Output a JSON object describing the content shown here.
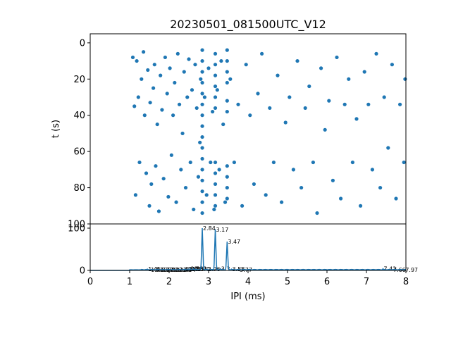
{
  "colors": {
    "marker": "#1f77b4",
    "axis": "#000000",
    "background": "#ffffff"
  },
  "chart_data": [
    {
      "type": "scatter",
      "title": "20230501_081500UTC_V12",
      "xlabel": "",
      "ylabel": "t (s)",
      "xlim": [
        0,
        8
      ],
      "ylim": [
        100,
        -5
      ],
      "y_inverted": true,
      "yticks": [
        0,
        20,
        40,
        60,
        80,
        100
      ],
      "x_shared_with_ipi_axis": true,
      "dense_columns_ms": [
        2.84,
        3.17,
        3.47
      ],
      "time_bands_s": [
        [
          5,
          52
        ],
        [
          62,
          97
        ]
      ],
      "points": [
        [
          1.08,
          8
        ],
        [
          1.12,
          35
        ],
        [
          1.15,
          84
        ],
        [
          1.18,
          10
        ],
        [
          1.22,
          30
        ],
        [
          1.25,
          66
        ],
        [
          1.3,
          20
        ],
        [
          1.35,
          5
        ],
        [
          1.38,
          40
        ],
        [
          1.42,
          72
        ],
        [
          1.46,
          15
        ],
        [
          1.5,
          90
        ],
        [
          1.52,
          33
        ],
        [
          1.55,
          78
        ],
        [
          1.6,
          25
        ],
        [
          1.63,
          12
        ],
        [
          1.66,
          68
        ],
        [
          1.7,
          45
        ],
        [
          1.74,
          93
        ],
        [
          1.78,
          18
        ],
        [
          1.82,
          37
        ],
        [
          1.86,
          75
        ],
        [
          1.9,
          8
        ],
        [
          1.95,
          28
        ],
        [
          1.98,
          85
        ],
        [
          2.02,
          14
        ],
        [
          2.06,
          62
        ],
        [
          2.1,
          40
        ],
        [
          2.14,
          22
        ],
        [
          2.18,
          88
        ],
        [
          2.22,
          6
        ],
        [
          2.26,
          34
        ],
        [
          2.3,
          70
        ],
        [
          2.34,
          50
        ],
        [
          2.38,
          16
        ],
        [
          2.42,
          80
        ],
        [
          2.46,
          30
        ],
        [
          2.5,
          9
        ],
        [
          2.54,
          66
        ],
        [
          2.58,
          26
        ],
        [
          2.62,
          92
        ],
        [
          2.66,
          12
        ],
        [
          2.7,
          36
        ],
        [
          2.74,
          74
        ],
        [
          2.78,
          55
        ],
        [
          2.8,
          20
        ],
        [
          2.84,
          4
        ],
        [
          2.84,
          10
        ],
        [
          2.84,
          16
        ],
        [
          2.84,
          22
        ],
        [
          2.84,
          28
        ],
        [
          2.84,
          34
        ],
        [
          2.84,
          40
        ],
        [
          2.84,
          46
        ],
        [
          2.84,
          52
        ],
        [
          2.84,
          58
        ],
        [
          2.84,
          64
        ],
        [
          2.84,
          70
        ],
        [
          2.84,
          76
        ],
        [
          2.84,
          82
        ],
        [
          2.84,
          88
        ],
        [
          2.84,
          94
        ],
        [
          2.9,
          30
        ],
        [
          2.95,
          84
        ],
        [
          3.0,
          14
        ],
        [
          3.05,
          66
        ],
        [
          3.1,
          38
        ],
        [
          3.14,
          92
        ],
        [
          3.17,
          6
        ],
        [
          3.17,
          12
        ],
        [
          3.17,
          18
        ],
        [
          3.17,
          24
        ],
        [
          3.17,
          30
        ],
        [
          3.17,
          36
        ],
        [
          3.17,
          66
        ],
        [
          3.17,
          72
        ],
        [
          3.17,
          78
        ],
        [
          3.17,
          84
        ],
        [
          3.17,
          90
        ],
        [
          3.22,
          26
        ],
        [
          3.27,
          70
        ],
        [
          3.32,
          10
        ],
        [
          3.37,
          45
        ],
        [
          3.42,
          88
        ],
        [
          3.47,
          4
        ],
        [
          3.47,
          10
        ],
        [
          3.47,
          16
        ],
        [
          3.47,
          22
        ],
        [
          3.47,
          32
        ],
        [
          3.47,
          38
        ],
        [
          3.47,
          68
        ],
        [
          3.47,
          74
        ],
        [
          3.47,
          80
        ],
        [
          3.47,
          86
        ],
        [
          3.55,
          20
        ],
        [
          3.65,
          66
        ],
        [
          3.75,
          34
        ],
        [
          3.85,
          90
        ],
        [
          3.95,
          12
        ],
        [
          4.05,
          40
        ],
        [
          4.15,
          78
        ],
        [
          4.25,
          28
        ],
        [
          4.35,
          6
        ],
        [
          4.45,
          84
        ],
        [
          4.55,
          36
        ],
        [
          4.65,
          66
        ],
        [
          4.75,
          18
        ],
        [
          4.85,
          88
        ],
        [
          4.95,
          44
        ],
        [
          5.05,
          30
        ],
        [
          5.15,
          70
        ],
        [
          5.25,
          10
        ],
        [
          5.35,
          80
        ],
        [
          5.45,
          36
        ],
        [
          5.55,
          24
        ],
        [
          5.65,
          66
        ],
        [
          5.75,
          94
        ],
        [
          5.85,
          14
        ],
        [
          5.95,
          48
        ],
        [
          6.05,
          32
        ],
        [
          6.15,
          76
        ],
        [
          6.25,
          8
        ],
        [
          6.35,
          86
        ],
        [
          6.45,
          34
        ],
        [
          6.55,
          20
        ],
        [
          6.65,
          66
        ],
        [
          6.75,
          42
        ],
        [
          6.85,
          90
        ],
        [
          6.95,
          16
        ],
        [
          7.05,
          34
        ],
        [
          7.15,
          70
        ],
        [
          7.25,
          6
        ],
        [
          7.35,
          80
        ],
        [
          7.45,
          30
        ],
        [
          7.55,
          58
        ],
        [
          7.65,
          12
        ],
        [
          7.75,
          86
        ],
        [
          7.85,
          34
        ],
        [
          7.95,
          66
        ],
        [
          7.98,
          20
        ]
      ]
    },
    {
      "type": "line",
      "title": "",
      "xlabel": "IPI (ms)",
      "ylabel": "",
      "xlim": [
        0,
        8
      ],
      "ylim": [
        0,
        110
      ],
      "xticks": [
        0,
        1,
        2,
        3,
        4,
        5,
        6,
        7,
        8
      ],
      "yticks": [
        0,
        100
      ],
      "peak_labels": [
        "1.45",
        "1.52",
        "1.63",
        "1.77",
        "1.82",
        "1.92",
        "2.02",
        "2.12",
        "2.23",
        "2.34",
        "2.40",
        "2.48",
        "2.53",
        "2.55",
        "2.62",
        "2.70",
        "2.84",
        "2.96",
        "3.17",
        "3.3",
        "3.47",
        "3.58",
        "3.77",
        "7.42",
        "7.66",
        "7.97"
      ],
      "peaks": [
        [
          1.45,
          3
        ],
        [
          1.52,
          2
        ],
        [
          1.63,
          2
        ],
        [
          1.77,
          2
        ],
        [
          1.82,
          2
        ],
        [
          1.92,
          2
        ],
        [
          2.02,
          2
        ],
        [
          2.12,
          2
        ],
        [
          2.23,
          2
        ],
        [
          2.34,
          2
        ],
        [
          2.4,
          3
        ],
        [
          2.48,
          3
        ],
        [
          2.53,
          4
        ],
        [
          2.55,
          3
        ],
        [
          2.62,
          4
        ],
        [
          2.7,
          3
        ],
        [
          2.84,
          100
        ],
        [
          2.96,
          3
        ],
        [
          3.17,
          97
        ],
        [
          3.3,
          4
        ],
        [
          3.47,
          68
        ],
        [
          3.58,
          3
        ],
        [
          3.77,
          2
        ],
        [
          7.42,
          4
        ],
        [
          7.66,
          2
        ],
        [
          7.97,
          2
        ]
      ]
    }
  ]
}
